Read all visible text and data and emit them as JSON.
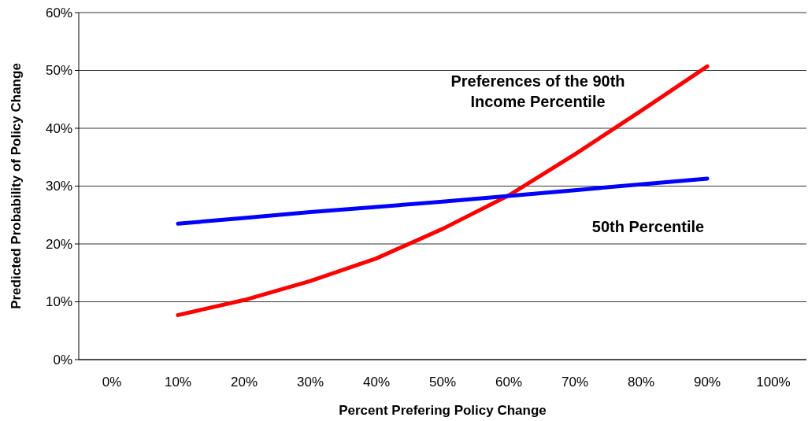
{
  "chart_data": {
    "type": "line",
    "xlabel": "Percent Prefering Policy Change",
    "ylabel": "Predicted Probability of Policy Change",
    "categories": [
      "0%",
      "10%",
      "20%",
      "30%",
      "40%",
      "50%",
      "60%",
      "70%",
      "80%",
      "90%",
      "100%"
    ],
    "series": [
      {
        "name": "Preferences of the 90th Income Percentile",
        "color": "#ff0000",
        "values": [
          null,
          7.7,
          10.3,
          13.6,
          17.5,
          22.6,
          28.4,
          35.5,
          43,
          50.7,
          null
        ]
      },
      {
        "name": "50th Percentile",
        "color": "#0000ff",
        "values": [
          null,
          23.5,
          24.5,
          25.5,
          26.4,
          27.3,
          28.3,
          29.3,
          30.3,
          31.3,
          null
        ]
      }
    ],
    "ylim": [
      0,
      60
    ],
    "yticks": [
      {
        "value": 0,
        "label": "0%"
      },
      {
        "value": 10,
        "label": "10%"
      },
      {
        "value": 20,
        "label": "20%"
      },
      {
        "value": 30,
        "label": "30%"
      },
      {
        "value": 40,
        "label": "40%"
      },
      {
        "value": 50,
        "label": "50%"
      },
      {
        "value": 60,
        "label": "60%"
      }
    ],
    "grid": "y",
    "legend": false,
    "marker": "none",
    "line_style": "solid"
  }
}
